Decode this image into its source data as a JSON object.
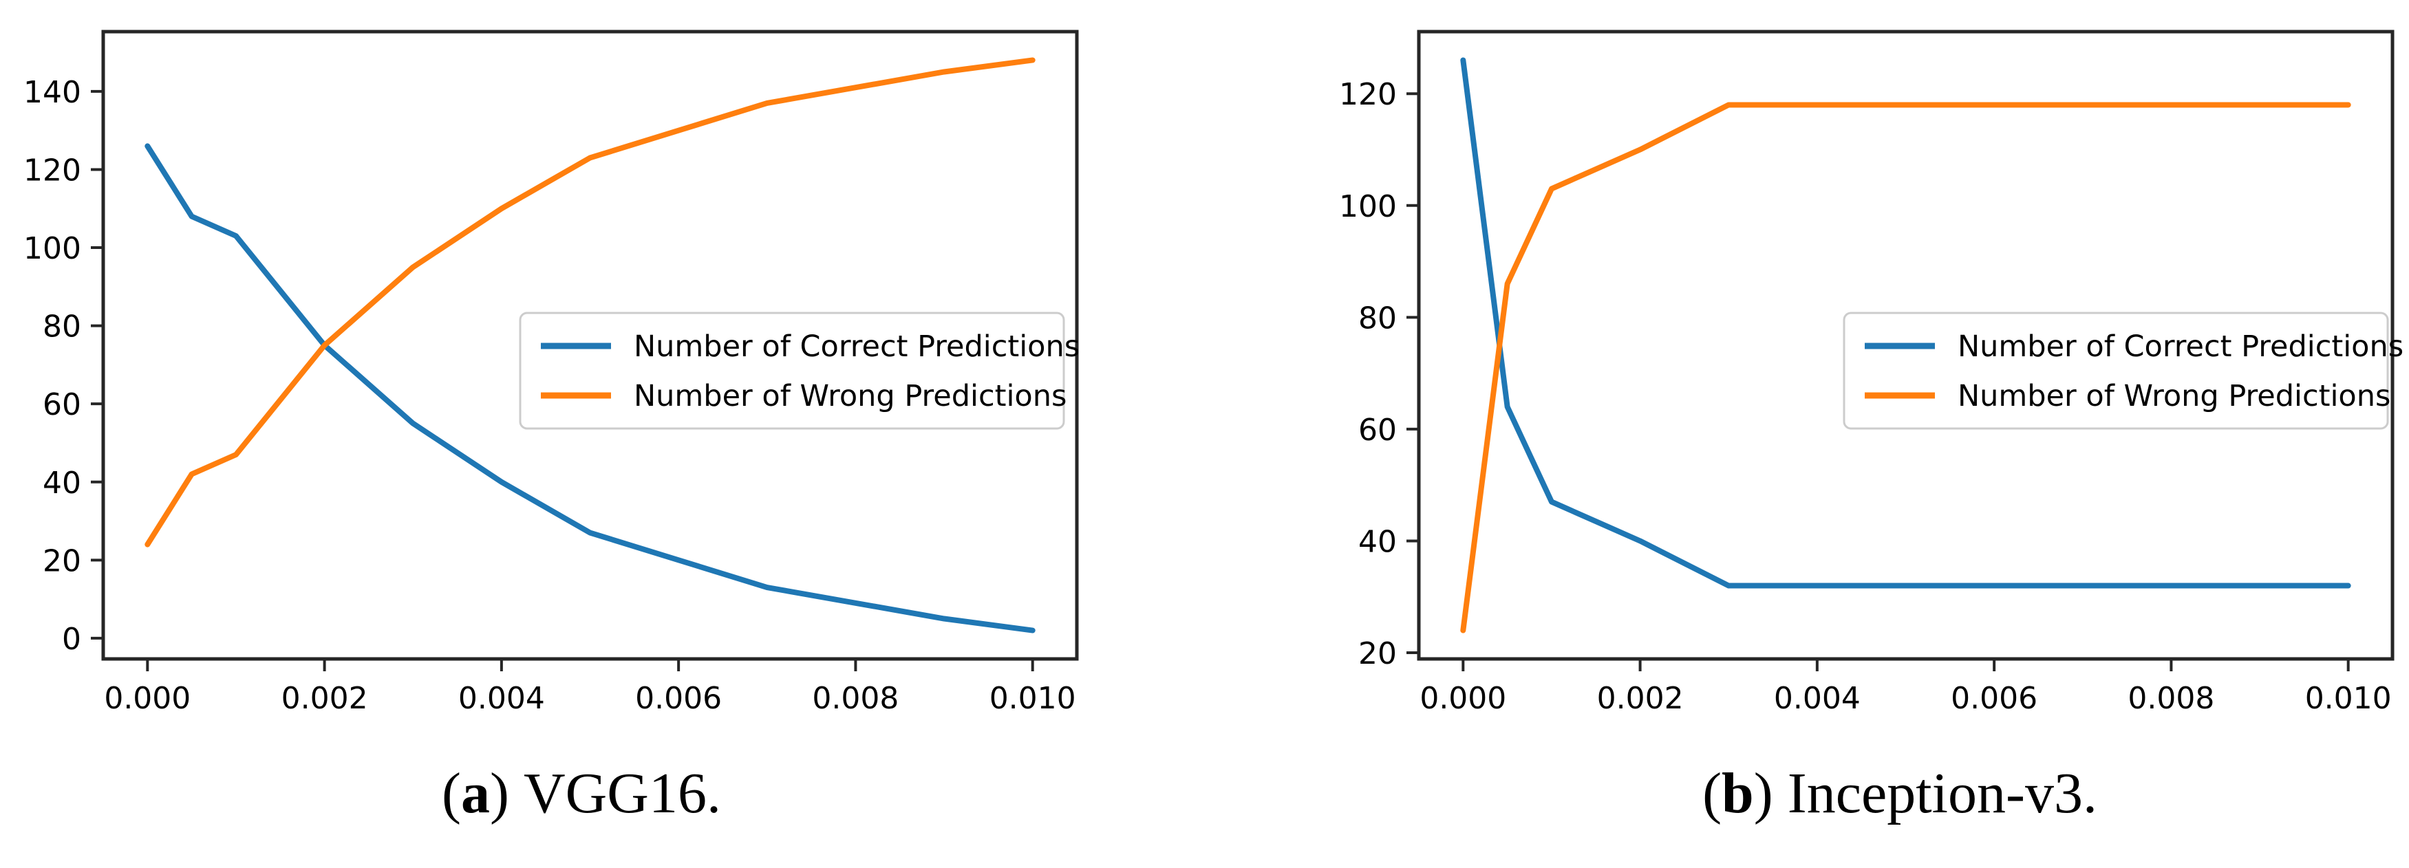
{
  "figure": {
    "background": "#ffffff",
    "text_color": "#000000",
    "spine_color": "#262626"
  },
  "chart_data": [
    {
      "type": "line",
      "caption": {
        "open": "(",
        "label": "a",
        "close": ")",
        "text": "VGG16."
      },
      "x": [
        0,
        0.0005,
        0.001,
        0.002,
        0.003,
        0.004,
        0.005,
        0.006,
        0.007,
        0.008,
        0.009,
        0.01
      ],
      "series": [
        {
          "name": "Number of Correct Predictions",
          "color": "#1f77b4",
          "values": [
            126,
            108,
            103,
            75,
            55,
            40,
            27,
            20,
            13,
            9,
            5,
            2
          ]
        },
        {
          "name": "Number of Wrong Predictions",
          "color": "#ff7f0e",
          "values": [
            24,
            42,
            47,
            75,
            95,
            110,
            123,
            130,
            137,
            141,
            145,
            148
          ]
        }
      ],
      "xlim": [
        -0.0005,
        0.0105
      ],
      "ylim": [
        -5.3,
        155.3
      ],
      "xticks": [
        0,
        0.002,
        0.004,
        0.006,
        0.008,
        0.01
      ],
      "xtick_labels": [
        "0.000",
        "0.002",
        "0.004",
        "0.006",
        "0.008",
        "0.010"
      ],
      "yticks": [
        0,
        20,
        40,
        60,
        80,
        100,
        120,
        140
      ],
      "ytick_labels": [
        "0",
        "20",
        "40",
        "60",
        "80",
        "100",
        "120",
        "140"
      ],
      "grid": false,
      "legend_position": "center right"
    },
    {
      "type": "line",
      "caption": {
        "open": "(",
        "label": "b",
        "close": ")",
        "text": "Inception-v3."
      },
      "x": [
        0,
        0.0005,
        0.001,
        0.002,
        0.003,
        0.004,
        0.005,
        0.006,
        0.007,
        0.008,
        0.009,
        0.01
      ],
      "series": [
        {
          "name": "Number of Correct Predictions",
          "color": "#1f77b4",
          "values": [
            126,
            64,
            47,
            40,
            32,
            32,
            32,
            32,
            32,
            32,
            32,
            32
          ]
        },
        {
          "name": "Number of Wrong Predictions",
          "color": "#ff7f0e",
          "values": [
            24,
            86,
            103,
            110,
            118,
            118,
            118,
            118,
            118,
            118,
            118,
            118
          ]
        }
      ],
      "xlim": [
        -0.0005,
        0.0105
      ],
      "ylim": [
        18.9,
        131.1
      ],
      "xticks": [
        0,
        0.002,
        0.004,
        0.006,
        0.008,
        0.01
      ],
      "xtick_labels": [
        "0.000",
        "0.002",
        "0.004",
        "0.006",
        "0.008",
        "0.010"
      ],
      "yticks": [
        20,
        40,
        60,
        80,
        100,
        120
      ],
      "ytick_labels": [
        "20",
        "40",
        "60",
        "80",
        "100",
        "120"
      ],
      "grid": false,
      "legend_position": "center right"
    }
  ]
}
